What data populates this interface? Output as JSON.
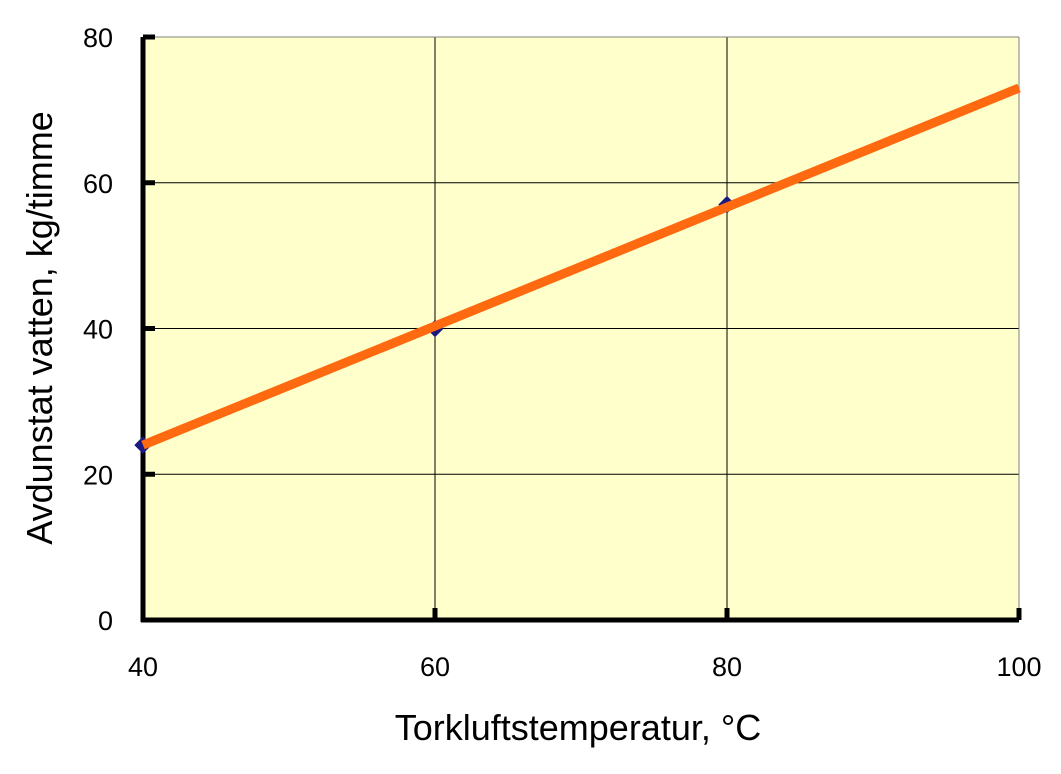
{
  "chart_data": {
    "type": "line",
    "xlabel": "Torkluftstemperatur, °C",
    "ylabel": "Avdunstat vatten, kg/timme",
    "xlim": [
      40,
      100
    ],
    "ylim": [
      0,
      80
    ],
    "x_ticks": [
      "40",
      "60",
      "80",
      "100"
    ],
    "y_ticks": [
      "0",
      "20",
      "40",
      "60",
      "80"
    ],
    "grid": true,
    "legend": "none",
    "series": [
      {
        "type": "scatter",
        "marker": "diamond",
        "color": "#1a1a80",
        "points": [
          {
            "x": 40,
            "y": 24
          },
          {
            "x": 60,
            "y": 40
          },
          {
            "x": 80,
            "y": 57
          }
        ]
      },
      {
        "type": "line",
        "color": "#ff6a10",
        "points": [
          {
            "x": 40,
            "y": 24
          },
          {
            "x": 100,
            "y": 73
          }
        ]
      }
    ],
    "colors": {
      "plot_background": "#ffffcc",
      "axis": "#000000",
      "grid": "#000000"
    }
  }
}
